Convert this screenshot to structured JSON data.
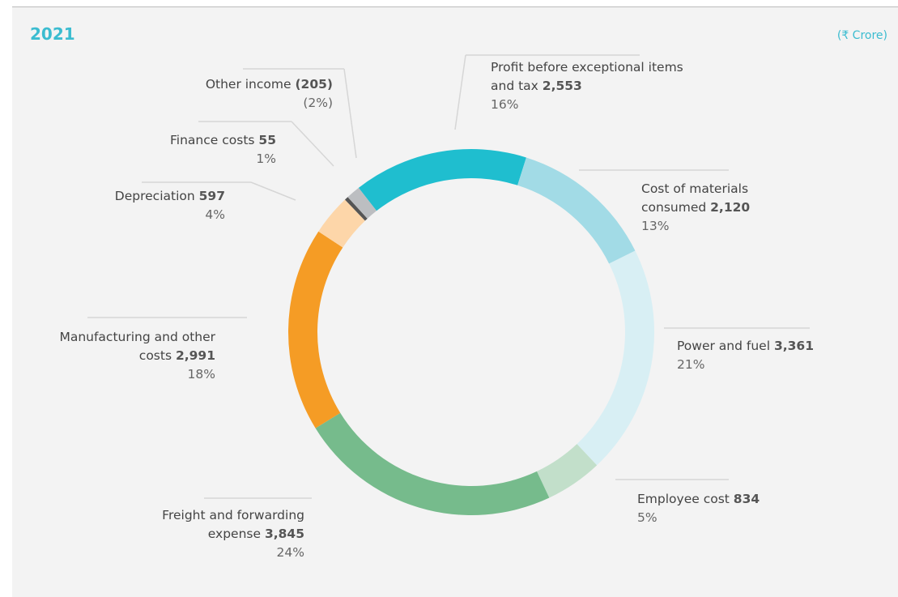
{
  "chart_data": {
    "type": "donut",
    "title": "2021",
    "unit": "(₹ Crore)",
    "categories": [
      "Profit before exceptional items and tax",
      "Cost of materials consumed",
      "Power and fuel",
      "Employee cost",
      "Freight and forwarding expense",
      "Manufacturing and other costs",
      "Depreciation",
      "Finance costs",
      "Other income"
    ],
    "values": [
      2553,
      2120,
      3361,
      834,
      3845,
      2991,
      597,
      55,
      -205
    ],
    "value_labels": [
      "2,553",
      "2,120",
      "3,361",
      "834",
      "3,845",
      "2,991",
      "597",
      "55",
      "(205)"
    ],
    "percent_labels": [
      "16%",
      "13%",
      "21%",
      "5%",
      "24%",
      "18%",
      "4%",
      "1%",
      "(2%)"
    ],
    "colors": [
      "#1fbecf",
      "#a2dbe6",
      "#d8eff4",
      "#c2dfca",
      "#76bb8c",
      "#f59c25",
      "#fdd6a9",
      "#555555",
      "#bcbec1"
    ]
  }
}
